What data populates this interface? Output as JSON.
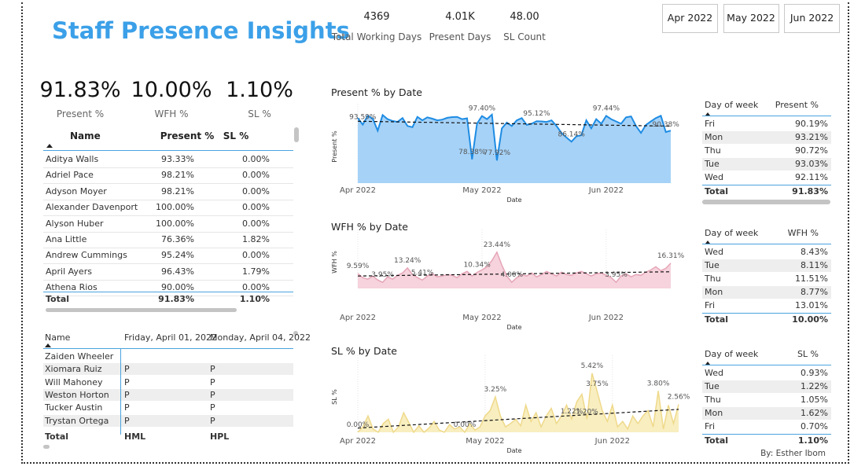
{
  "header": {
    "title": "Staff Presence Insights",
    "kpis": [
      {
        "value": "4369",
        "label": "Total Working Days"
      },
      {
        "value": "4.01K",
        "label": "Present Days"
      },
      {
        "value": "48.00",
        "label": "SL Count"
      }
    ],
    "slicers": [
      "Apr 2022",
      "May 2022",
      "Jun 2022"
    ]
  },
  "cards": [
    {
      "value": "91.83%",
      "label": "Present %"
    },
    {
      "value": "10.00%",
      "label": "WFH %"
    },
    {
      "value": "1.10%",
      "label": "SL %"
    }
  ],
  "staff_table": {
    "columns": [
      "Name",
      "Present %",
      "SL %"
    ],
    "rows": [
      [
        "Aditya Walls",
        "93.33%",
        "0.00%"
      ],
      [
        "Adriel Pace",
        "98.21%",
        "0.00%"
      ],
      [
        "Adyson Moyer",
        "98.21%",
        "0.00%"
      ],
      [
        "Alexander Davenport",
        "100.00%",
        "0.00%"
      ],
      [
        "Alyson Huber",
        "100.00%",
        "0.00%"
      ],
      [
        "Ana Little",
        "76.36%",
        "1.82%"
      ],
      [
        "Andrew Cummings",
        "95.24%",
        "0.00%"
      ],
      [
        "April Ayers",
        "96.43%",
        "1.79%"
      ],
      [
        "Athena Rios",
        "90.00%",
        "0.00%"
      ]
    ],
    "total": [
      "Total",
      "91.83%",
      "1.10%"
    ]
  },
  "attendance_table": {
    "columns": [
      "Name",
      "Friday, April 01, 2022",
      "Monday, April 04, 2022"
    ],
    "rows": [
      [
        "Zaiden Wheeler",
        null,
        null
      ],
      [
        "Xiomara Ruiz",
        "P",
        "P"
      ],
      [
        "Will Mahoney",
        "P",
        "P"
      ],
      [
        "Weston Horton",
        "P",
        "P"
      ],
      [
        "Tucker Austin",
        "P",
        "P"
      ],
      [
        "Trystan Ortega",
        "P",
        "P"
      ]
    ],
    "total": [
      "Total",
      "HML",
      "HPL"
    ]
  },
  "charts": [
    {
      "type": "area",
      "title": "Present % by Date",
      "x_label": "Date",
      "y_label": "Present %",
      "color": "#1e8ce3",
      "fill": "#a6d2f7",
      "trend_line": true,
      "xlim": [
        0,
        63
      ],
      "ylim": [
        68,
        100
      ],
      "xticks": [
        {
          "value": 0,
          "label": "Apr 2022"
        },
        {
          "value": 25,
          "label": "May 2022"
        },
        {
          "value": 50,
          "label": "Jun 2022"
        }
      ],
      "values": [
        96.5,
        93.59,
        97.44,
        96.2,
        91.0,
        97.8,
        96.0,
        95.2,
        94.8,
        96.5,
        93.0,
        92.5,
        97.0,
        95.5,
        96.8,
        96.2,
        95.5,
        95.8,
        96.6,
        96.9,
        97.0,
        96.0,
        96.4,
        78.38,
        94.0,
        97.4,
        96.0,
        98.0,
        77.92,
        92.0,
        94.5,
        93.0,
        95.5,
        96.5,
        93.5,
        94.0,
        95.12,
        95.0,
        94.8,
        95.5,
        93.0,
        90.0,
        88.0,
        86.14,
        88.5,
        89.0,
        95.5,
        92.0,
        96.0,
        94.0,
        97.44,
        96.0,
        95.0,
        94.0,
        96.8,
        97.2,
        93.0,
        90.0,
        93.5,
        95.0,
        96.5,
        97.5,
        90.38,
        91.0
      ],
      "value_labels": [
        null,
        "93.59%",
        null,
        null,
        null,
        null,
        null,
        null,
        null,
        null,
        null,
        null,
        null,
        null,
        null,
        null,
        null,
        null,
        null,
        null,
        null,
        null,
        null,
        "78.38%",
        null,
        "97.40%",
        null,
        null,
        "77.92%",
        null,
        null,
        null,
        null,
        null,
        null,
        null,
        "95.12%",
        null,
        null,
        null,
        null,
        null,
        null,
        "86.14%",
        null,
        null,
        null,
        null,
        null,
        null,
        "97.44%",
        null,
        null,
        null,
        null,
        null,
        null,
        null,
        null,
        null,
        null,
        null,
        "90.38%",
        null
      ]
    },
    {
      "type": "area",
      "title": "WFH % by Date",
      "x_label": "Date",
      "y_label": "WFH %",
      "color": "#e6a5b7",
      "fill": "#f6d3dd",
      "trend_line": true,
      "xlim": [
        0,
        63
      ],
      "ylim": [
        0,
        34
      ],
      "xticks": [
        {
          "value": 0,
          "label": "Apr 2022"
        },
        {
          "value": 25,
          "label": "May 2022"
        },
        {
          "value": 50,
          "label": "Jun 2022"
        }
      ],
      "values": [
        9.59,
        7.0,
        6.0,
        8.0,
        5.5,
        3.95,
        7.5,
        6.0,
        8.5,
        10.0,
        13.24,
        9.0,
        7.0,
        5.41,
        8.0,
        9.5,
        7.5,
        8.0,
        9.0,
        8.5,
        7.0,
        9.5,
        11.0,
        8.0,
        10.34,
        12.0,
        14.0,
        18.0,
        23.44,
        15.0,
        8.0,
        4.0,
        7.0,
        9.0,
        8.0,
        10.0,
        7.5,
        9.0,
        11.0,
        9.5,
        8.0,
        10.5,
        9.0,
        8.5,
        10.0,
        11.0,
        9.5,
        8.0,
        9.5,
        10.0,
        8.5,
        7.0,
        3.95,
        8.0,
        9.5,
        7.5,
        9.0,
        8.5,
        10.5,
        12.0,
        14.0,
        11.5,
        13.0,
        16.31
      ],
      "value_labels": [
        "9.59%",
        null,
        null,
        null,
        null,
        "3.95%",
        null,
        null,
        null,
        null,
        "13.24%",
        null,
        null,
        "5.41%",
        null,
        null,
        null,
        null,
        null,
        null,
        null,
        null,
        null,
        null,
        "10.34%",
        null,
        null,
        null,
        "23.44%",
        null,
        null,
        "4.00%",
        null,
        null,
        null,
        null,
        null,
        null,
        null,
        null,
        null,
        null,
        null,
        null,
        null,
        null,
        null,
        null,
        null,
        null,
        null,
        null,
        "3.95%",
        null,
        null,
        null,
        null,
        null,
        null,
        null,
        null,
        null,
        null,
        "16.31%"
      ]
    },
    {
      "type": "area",
      "title": "SL % by Date",
      "x_label": "Date",
      "y_label": "SL %",
      "color": "#efd98a",
      "fill": "#f8eec0",
      "trend_line": true,
      "xlim": [
        0,
        63
      ],
      "ylim": [
        0,
        6.5
      ],
      "xticks": [
        {
          "value": 0,
          "label": "Apr 2022"
        },
        {
          "value": 25,
          "label": "May 2022"
        },
        {
          "value": 50,
          "label": "Jun 2022"
        }
      ],
      "values": [
        0,
        0.5,
        1.5,
        0.3,
        0.0,
        0.8,
        1.2,
        0.0,
        0.5,
        1.8,
        0.9,
        0.0,
        0.6,
        0.0,
        0.4,
        1.0,
        0.2,
        0.0,
        0.7,
        0.3,
        0.5,
        0,
        0.8,
        0.2,
        0.5,
        1.5,
        2.0,
        3.25,
        1.5,
        0.5,
        0.8,
        1.2,
        0.6,
        2.5,
        1.0,
        1.8,
        0.5,
        1.5,
        2.2,
        0.8,
        1.5,
        2.5,
        1.22,
        2.8,
        3.5,
        1.2,
        5.42,
        3.75,
        2.0,
        1.0,
        2.5,
        0.5,
        1.0,
        0.3,
        1.5,
        0.8,
        1.5,
        2.0,
        0.5,
        3.8,
        0.3,
        2.5,
        0.8,
        2.56
      ],
      "value_labels": [
        "0.00%",
        null,
        null,
        null,
        null,
        null,
        null,
        null,
        null,
        null,
        null,
        null,
        null,
        null,
        null,
        null,
        null,
        null,
        null,
        null,
        null,
        "0.00%",
        null,
        null,
        null,
        null,
        null,
        "3.25%",
        null,
        null,
        null,
        null,
        null,
        null,
        null,
        null,
        null,
        null,
        null,
        null,
        null,
        null,
        "1.22%",
        null,
        null,
        "1.20%",
        "5.42%",
        "3.75%",
        null,
        null,
        null,
        null,
        null,
        null,
        null,
        null,
        null,
        null,
        null,
        "3.80%",
        null,
        null,
        null,
        "2.56%"
      ]
    }
  ],
  "day_tables": [
    {
      "columns": [
        "Day of week",
        "Present %"
      ],
      "rows": [
        [
          "Fri",
          "90.19%"
        ],
        [
          "Mon",
          "93.21%"
        ],
        [
          "Thu",
          "90.72%"
        ],
        [
          "Tue",
          "93.03%"
        ],
        [
          "Wed",
          "92.11%"
        ]
      ],
      "total": [
        "Total",
        "91.83%"
      ]
    },
    {
      "columns": [
        "Day of week",
        "WFH %"
      ],
      "rows": [
        [
          "Wed",
          "8.43%"
        ],
        [
          "Tue",
          "8.11%"
        ],
        [
          "Thu",
          "11.51%"
        ],
        [
          "Mon",
          "8.77%"
        ],
        [
          "Fri",
          "13.01%"
        ]
      ],
      "total": [
        "Total",
        "10.00%"
      ]
    },
    {
      "columns": [
        "Day of week",
        "SL %"
      ],
      "rows": [
        [
          "Wed",
          "0.93%"
        ],
        [
          "Tue",
          "1.22%"
        ],
        [
          "Thu",
          "1.05%"
        ],
        [
          "Mon",
          "1.62%"
        ],
        [
          "Fri",
          "0.70%"
        ]
      ],
      "total": [
        "Total",
        "1.10%"
      ]
    }
  ],
  "footer": "By: Esther Ibom"
}
